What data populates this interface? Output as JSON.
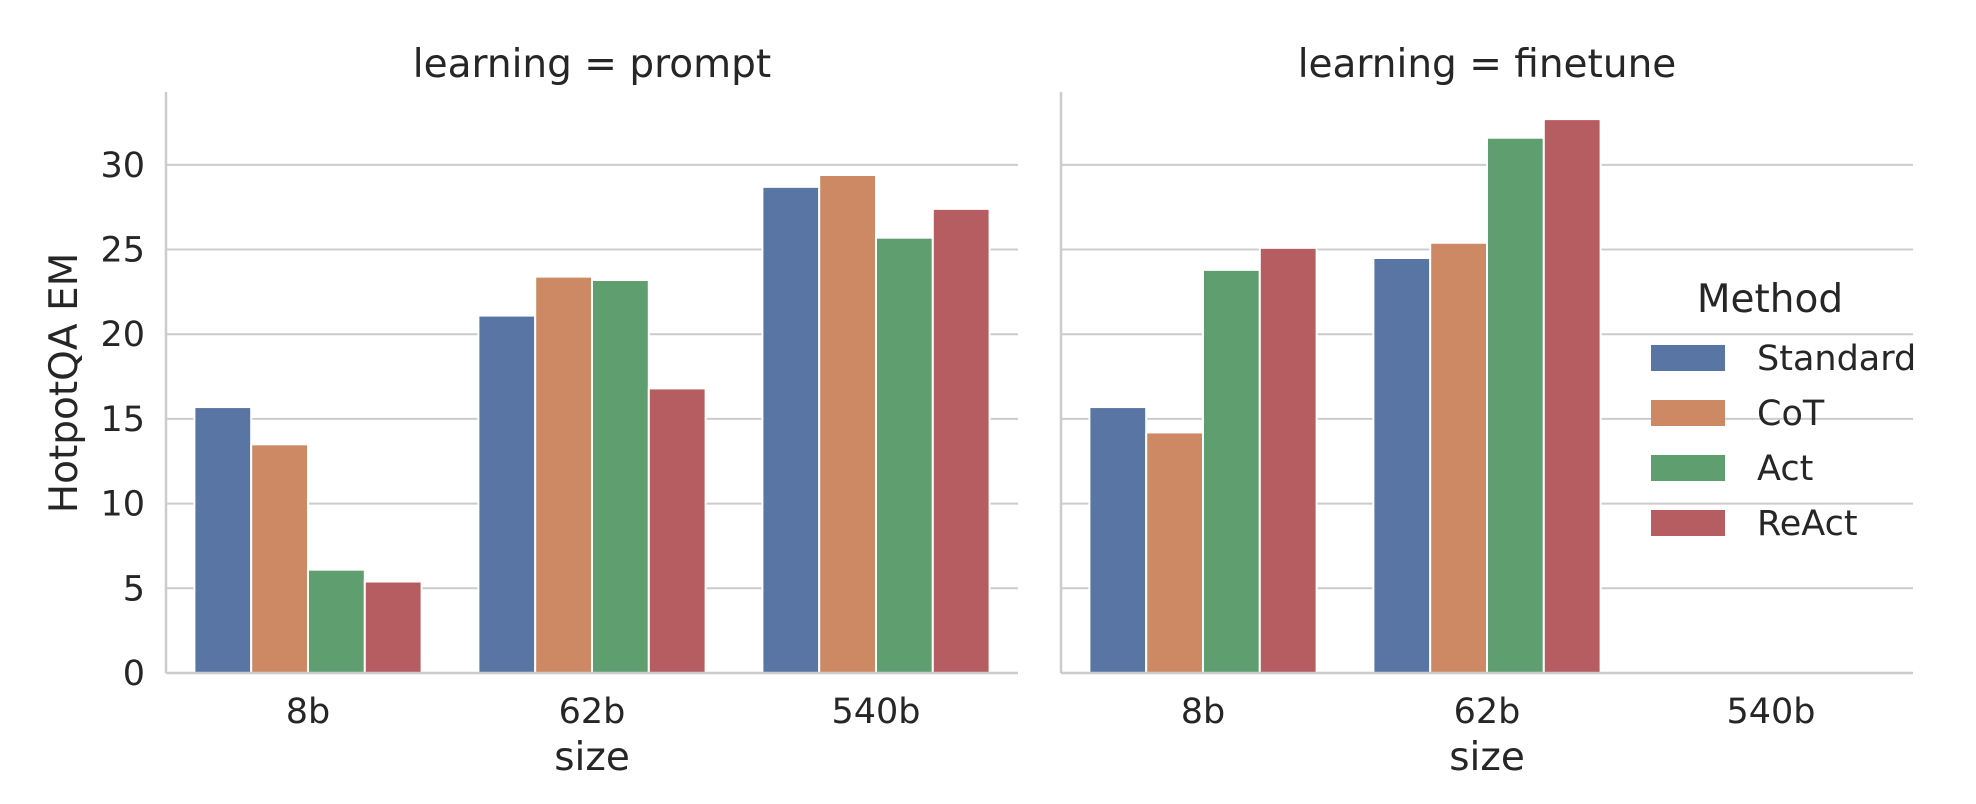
{
  "chart_data": {
    "type": "bar",
    "ylabel": "HotpotQA EM",
    "ylim": [
      0,
      34.3
    ],
    "yticks": [
      0,
      5,
      10,
      15,
      20,
      25,
      30
    ],
    "grid": "horizontal",
    "legend": {
      "title": "Method",
      "placement": "right",
      "entries": [
        {
          "name": "Standard",
          "color": "#5875a4"
        },
        {
          "name": "CoT",
          "color": "#cc8963"
        },
        {
          "name": "Act",
          "color": "#5f9e6e"
        },
        {
          "name": "ReAct",
          "color": "#b55d60"
        }
      ]
    },
    "panels": [
      {
        "title": "learning = prompt",
        "xlabel": "size",
        "categories": [
          "8b",
          "62b",
          "540b"
        ],
        "series": [
          {
            "name": "Standard",
            "values": [
              15.7,
              21.1,
              28.7
            ]
          },
          {
            "name": "CoT",
            "values": [
              13.5,
              23.4,
              29.4
            ]
          },
          {
            "name": "Act",
            "values": [
              6.1,
              23.2,
              25.7
            ]
          },
          {
            "name": "ReAct",
            "values": [
              5.4,
              16.8,
              27.4
            ]
          }
        ]
      },
      {
        "title": "learning = finetune",
        "xlabel": "size",
        "categories": [
          "8b",
          "62b",
          "540b"
        ],
        "series": [
          {
            "name": "Standard",
            "values": [
              15.7,
              24.5,
              null
            ]
          },
          {
            "name": "CoT",
            "values": [
              14.2,
              25.4,
              null
            ]
          },
          {
            "name": "Act",
            "values": [
              23.8,
              31.6,
              null
            ]
          },
          {
            "name": "ReAct",
            "values": [
              25.1,
              32.7,
              null
            ]
          }
        ]
      }
    ]
  }
}
